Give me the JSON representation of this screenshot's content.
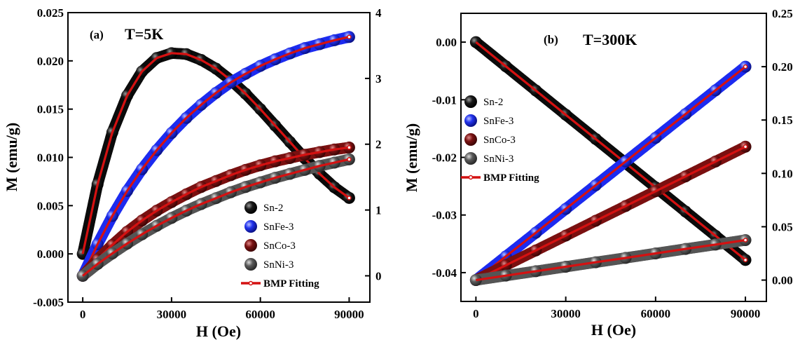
{
  "figure": {
    "fit_label": "BMP Fitting",
    "fit_color": "#d41111"
  },
  "chart_data": [
    {
      "type": "scatter",
      "panel_label": "(a)",
      "title": "T=5K",
      "xlabel": "H (Oe)",
      "ylabel": "M (emu/g)",
      "y2label": "",
      "xlim": [
        -5000,
        97000
      ],
      "xticks": [
        0,
        30000,
        60000,
        90000
      ],
      "ylim": [
        -0.005,
        0.025
      ],
      "yticks": [
        -0.005,
        0.0,
        0.005,
        0.01,
        0.015,
        0.02,
        0.025
      ],
      "ytick_labels": [
        "-0.005",
        "0.000",
        "0.005",
        "0.010",
        "0.015",
        "0.020",
        "0.025"
      ],
      "y2lim": [
        -0.4,
        4.0
      ],
      "y2ticks": [
        0,
        1,
        2,
        3,
        4
      ],
      "y2tick_labels": [
        "0",
        "1",
        "2",
        "3",
        "4"
      ],
      "legend_position": "bottom-right",
      "series": [
        {
          "name": "Sn-2",
          "axis": "left",
          "color": "#0b0b0b",
          "x": [
            0,
            5000,
            10000,
            15000,
            20000,
            25000,
            30000,
            35000,
            40000,
            45000,
            50000,
            55000,
            60000,
            65000,
            70000,
            75000,
            80000,
            85000,
            90000
          ],
          "y": [
            0.0,
            0.0072,
            0.0126,
            0.0164,
            0.0189,
            0.0203,
            0.0208,
            0.0207,
            0.0201,
            0.0192,
            0.018,
            0.0166,
            0.015,
            0.0133,
            0.0116,
            0.0099,
            0.0083,
            0.0069,
            0.0058
          ]
        },
        {
          "name": "SnFe-3",
          "axis": "right",
          "color": "#1c2bf0",
          "x": [
            0,
            5000,
            10000,
            15000,
            20000,
            25000,
            30000,
            35000,
            40000,
            45000,
            50000,
            55000,
            60000,
            65000,
            70000,
            75000,
            80000,
            85000,
            90000
          ],
          "y": [
            0.0,
            0.48,
            0.91,
            1.29,
            1.62,
            1.91,
            2.17,
            2.4,
            2.6,
            2.78,
            2.94,
            3.07,
            3.19,
            3.29,
            3.38,
            3.46,
            3.52,
            3.58,
            3.63
          ]
        },
        {
          "name": "SnCo-3",
          "axis": "right",
          "color": "#7a1010",
          "x": [
            0,
            5000,
            10000,
            15000,
            20000,
            25000,
            30000,
            35000,
            40000,
            45000,
            50000,
            55000,
            60000,
            65000,
            70000,
            75000,
            80000,
            85000,
            90000
          ],
          "y": [
            0.0,
            0.25,
            0.47,
            0.67,
            0.84,
            0.99,
            1.12,
            1.24,
            1.35,
            1.44,
            1.53,
            1.61,
            1.68,
            1.74,
            1.79,
            1.84,
            1.88,
            1.92,
            1.95
          ]
        },
        {
          "name": "SnNi-3",
          "axis": "right",
          "color": "#555555",
          "x": [
            0,
            5000,
            10000,
            15000,
            20000,
            25000,
            30000,
            35000,
            40000,
            45000,
            50000,
            55000,
            60000,
            65000,
            70000,
            75000,
            80000,
            85000,
            90000
          ],
          "y": [
            0.0,
            0.18,
            0.34,
            0.49,
            0.63,
            0.76,
            0.88,
            0.99,
            1.09,
            1.18,
            1.27,
            1.35,
            1.42,
            1.49,
            1.55,
            1.61,
            1.67,
            1.72,
            1.77
          ]
        }
      ]
    },
    {
      "type": "scatter",
      "panel_label": "(b)",
      "title": "T=300K",
      "xlabel": "H (Oe)",
      "ylabel": "M (emu/g)",
      "y2label": "",
      "xlim": [
        -5000,
        97000
      ],
      "xticks": [
        0,
        30000,
        60000,
        90000
      ],
      "ylim": [
        -0.045,
        0.005
      ],
      "yticks": [
        -0.04,
        -0.03,
        -0.02,
        -0.01,
        0.0
      ],
      "ytick_labels": [
        "-0.04",
        "-0.03",
        "-0.02",
        "-0.01",
        "0.00"
      ],
      "y2lim": [
        -0.02,
        0.25
      ],
      "y2ticks": [
        0.0,
        0.05,
        0.1,
        0.15,
        0.2,
        0.25
      ],
      "y2tick_labels": [
        "0.00",
        "0.05",
        "0.10",
        "0.15",
        "0.20",
        "0.25"
      ],
      "legend_position": "top-left",
      "series": [
        {
          "name": "Sn-2",
          "axis": "left",
          "color": "#0b0b0b",
          "x": [
            0,
            10000,
            20000,
            30000,
            40000,
            50000,
            60000,
            70000,
            80000,
            90000
          ],
          "y": [
            0.0,
            -0.0042,
            -0.0084,
            -0.0126,
            -0.0168,
            -0.021,
            -0.0252,
            -0.0294,
            -0.0336,
            -0.0378
          ]
        },
        {
          "name": "SnFe-3",
          "axis": "right",
          "color": "#1c2bf0",
          "x": [
            0,
            10000,
            20000,
            30000,
            40000,
            50000,
            60000,
            70000,
            80000,
            90000
          ],
          "y": [
            0.0,
            0.0222,
            0.0444,
            0.0667,
            0.0889,
            0.1111,
            0.1333,
            0.1556,
            0.1778,
            0.2
          ]
        },
        {
          "name": "SnCo-3",
          "axis": "right",
          "color": "#7a1010",
          "x": [
            0,
            10000,
            20000,
            30000,
            40000,
            50000,
            60000,
            70000,
            80000,
            90000
          ],
          "y": [
            0.0,
            0.0139,
            0.0278,
            0.0417,
            0.0556,
            0.0694,
            0.0833,
            0.0972,
            0.1111,
            0.125
          ]
        },
        {
          "name": "SnNi-3",
          "axis": "right",
          "color": "#555555",
          "x": [
            0,
            10000,
            20000,
            30000,
            40000,
            50000,
            60000,
            70000,
            80000,
            90000
          ],
          "y": [
            0.0,
            0.0042,
            0.0083,
            0.0125,
            0.0167,
            0.0208,
            0.025,
            0.0292,
            0.0333,
            0.0375
          ]
        }
      ]
    }
  ]
}
